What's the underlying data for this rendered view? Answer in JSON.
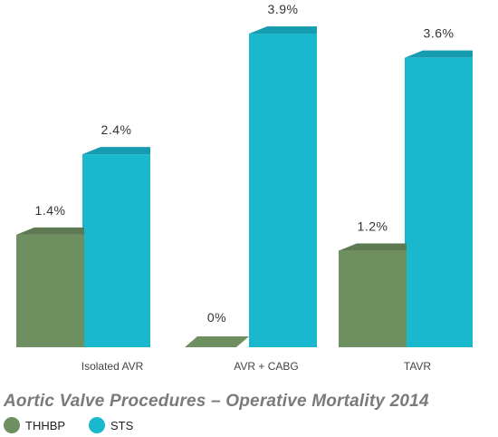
{
  "chart_data": {
    "type": "bar",
    "title": "Aortic Valve Procedures – Operative Mortality 2014",
    "xlabel": "",
    "ylabel": "",
    "ylim": [
      0,
      3.9
    ],
    "grid": false,
    "legend_position": "bottom-left",
    "categories": [
      "Isolated AVR",
      "AVR + CABG",
      "TAVR"
    ],
    "series": [
      {
        "name": "THHBP",
        "values": [
          1.4,
          0,
          1.2
        ],
        "labels": [
          "1.4%",
          "0%",
          "1.2%"
        ],
        "color": "#6e8f60"
      },
      {
        "name": "STS",
        "values": [
          2.4,
          3.9,
          3.6
        ],
        "labels": [
          "2.4%",
          "3.9%",
          "3.6%"
        ],
        "color": "#1ab8cf"
      }
    ]
  }
}
